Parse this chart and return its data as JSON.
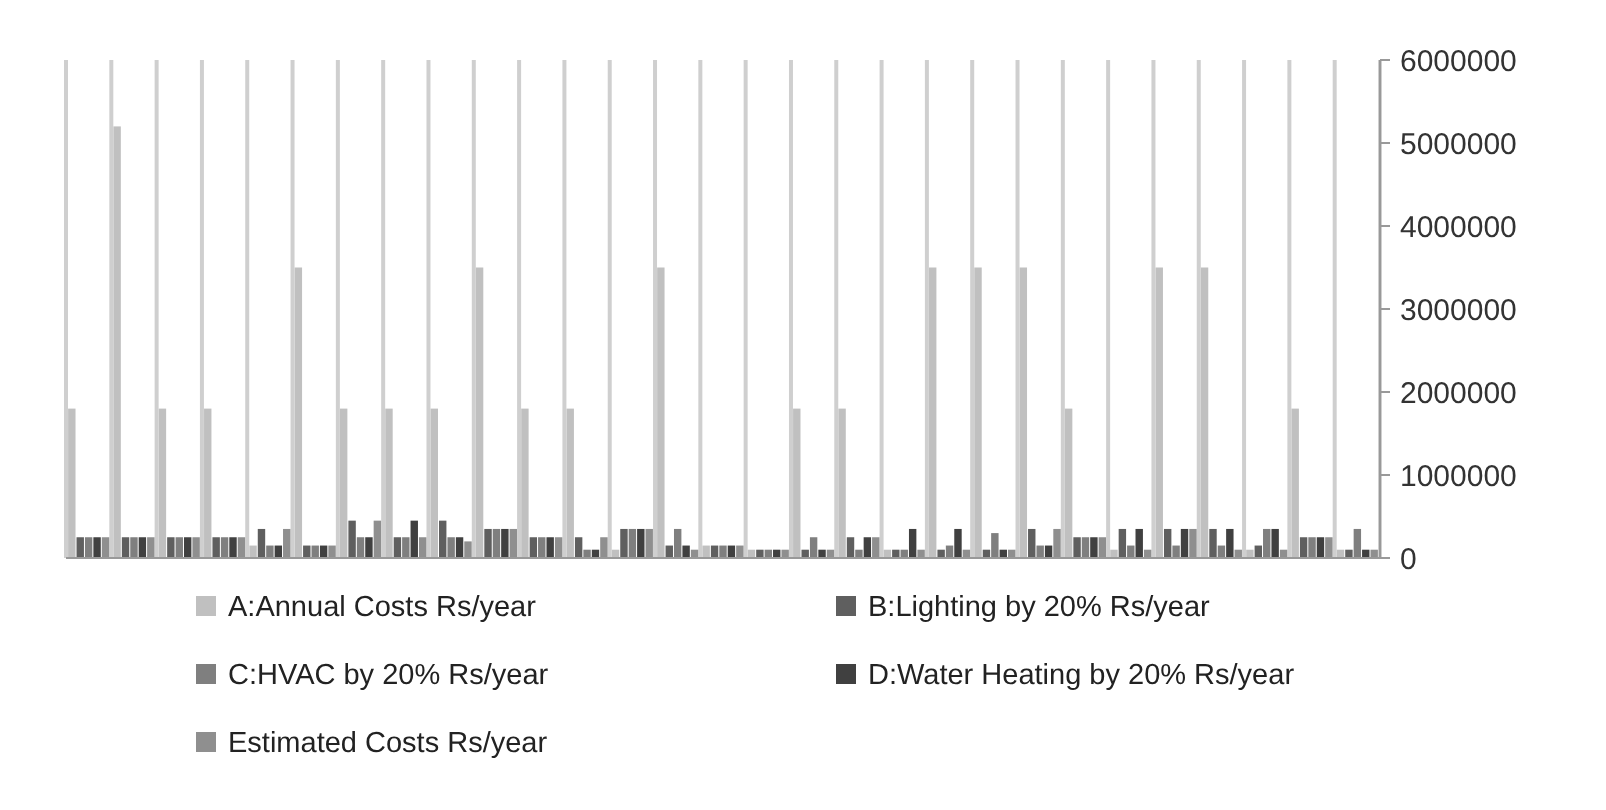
{
  "chart_data": {
    "type": "bar",
    "categories": [
      null,
      null,
      null,
      null,
      null,
      null,
      null,
      null,
      null,
      null,
      null,
      null,
      null,
      null,
      null,
      null,
      null,
      null,
      null,
      null,
      null,
      null,
      null,
      null,
      null,
      null,
      null,
      null,
      null
    ],
    "series": [
      {
        "name": "A:Annual Costs Rs/year",
        "color": "#c0c0c0",
        "values": [
          1800000,
          5200000,
          1800000,
          1800000,
          150000,
          3500000,
          1800000,
          1800000,
          1800000,
          3500000,
          1800000,
          1800000,
          100000,
          3500000,
          150000,
          100000,
          1800000,
          1800000,
          100000,
          3500000,
          3500000,
          3500000,
          1800000,
          100000,
          3500000,
          3500000,
          100000,
          1800000,
          100000
        ]
      },
      {
        "name": "B:Lighting by 20% Rs/year",
        "color": "#5f5f5f",
        "values": [
          250000,
          250000,
          250000,
          250000,
          350000,
          150000,
          450000,
          250000,
          450000,
          350000,
          250000,
          250000,
          350000,
          150000,
          150000,
          100000,
          100000,
          250000,
          100000,
          100000,
          100000,
          350000,
          250000,
          350000,
          350000,
          350000,
          150000,
          250000,
          100000
        ]
      },
      {
        "name": "C:HVAC by 20% Rs/year",
        "color": "#7f7f7f",
        "values": [
          250000,
          250000,
          250000,
          250000,
          150000,
          150000,
          250000,
          250000,
          250000,
          350000,
          250000,
          100000,
          350000,
          350000,
          150000,
          100000,
          250000,
          100000,
          100000,
          150000,
          300000,
          150000,
          250000,
          150000,
          150000,
          150000,
          350000,
          250000,
          350000
        ]
      },
      {
        "name": "D:Water Heating by 20% Rs/year",
        "color": "#404040",
        "values": [
          250000,
          250000,
          250000,
          250000,
          150000,
          150000,
          250000,
          450000,
          250000,
          350000,
          250000,
          100000,
          350000,
          150000,
          150000,
          100000,
          100000,
          250000,
          350000,
          350000,
          100000,
          150000,
          250000,
          350000,
          350000,
          350000,
          350000,
          250000,
          100000
        ]
      },
      {
        "name": "Estimated Costs Rs/year",
        "color": "#8f8f8f",
        "values": [
          250000,
          250000,
          250000,
          250000,
          350000,
          150000,
          450000,
          250000,
          200000,
          350000,
          250000,
          250000,
          350000,
          100000,
          150000,
          100000,
          100000,
          250000,
          100000,
          100000,
          100000,
          350000,
          250000,
          100000,
          350000,
          100000,
          100000,
          250000,
          100000
        ]
      }
    ],
    "ylim": [
      0,
      6000000
    ],
    "yticks": [
      0,
      1000000,
      2000000,
      3000000,
      4000000,
      5000000,
      6000000
    ],
    "grid": "x",
    "legend": "bottom"
  }
}
